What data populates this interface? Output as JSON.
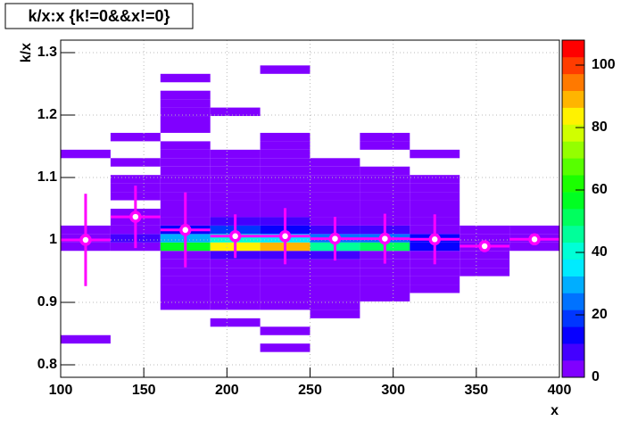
{
  "chart_data": {
    "type": "heatmap",
    "title": "k/x:x {k!=0&&x!=0}",
    "x_label": "x",
    "y_label": "k/x",
    "xlim": [
      100,
      400
    ],
    "ylim": [
      0.78,
      1.32
    ],
    "xticks": [
      100,
      150,
      200,
      250,
      300,
      350,
      400
    ],
    "yticks": [
      0.8,
      0.9,
      1,
      1.1,
      1.2,
      1.3
    ],
    "zlim": [
      0,
      108
    ],
    "zticks": [
      0,
      20,
      40,
      60,
      80,
      100
    ],
    "grid": true,
    "xbins": [
      100,
      130,
      160,
      190,
      220,
      250,
      280,
      310,
      340,
      370,
      400
    ],
    "ybins": [
      0.78,
      0.7935,
      0.807,
      0.8205,
      0.834,
      0.8475,
      0.861,
      0.8745,
      0.888,
      0.9015,
      0.915,
      0.9285,
      0.942,
      0.9555,
      0.969,
      0.9825,
      0.996,
      1.0095,
      1.023,
      1.0365,
      1.05,
      1.0635,
      1.077,
      1.0905,
      1.104,
      1.1175,
      1.131,
      1.1445,
      1.158,
      1.1715,
      1.185,
      1.1985,
      1.212,
      1.2255,
      1.239,
      1.2525,
      1.266,
      1.2795,
      1.293,
      1.3065,
      1.32
    ],
    "z": [
      [
        0,
        0,
        0,
        0,
        1,
        0,
        0,
        0,
        0,
        0,
        0,
        0,
        0,
        0,
        0,
        3,
        4,
        2,
        0,
        0,
        0,
        0,
        0,
        0,
        0,
        0,
        1,
        0,
        0,
        0,
        0,
        0,
        0,
        0,
        0,
        0,
        0,
        0,
        0,
        0
      ],
      [
        0,
        0,
        0,
        0,
        0,
        0,
        0,
        0,
        0,
        0,
        0,
        0,
        0,
        0,
        0,
        5,
        8,
        4,
        2,
        1,
        0,
        1,
        1,
        2,
        0,
        1,
        0,
        0,
        1,
        0,
        0,
        0,
        0,
        0,
        0,
        0,
        0,
        0,
        0,
        0
      ],
      [
        0,
        0,
        0,
        0,
        0,
        0,
        0,
        0,
        1,
        1,
        1,
        2,
        2,
        3,
        4,
        58,
        32,
        12,
        5,
        3,
        2,
        2,
        1,
        1,
        1,
        1,
        1,
        1,
        0,
        1,
        1,
        1,
        1,
        1,
        0,
        1,
        0,
        0,
        0,
        0
      ],
      [
        0,
        0,
        0,
        0,
        0,
        0,
        1,
        0,
        1,
        1,
        2,
        2,
        3,
        4,
        6,
        82,
        42,
        20,
        9,
        4,
        3,
        2,
        1,
        1,
        1,
        1,
        1,
        0,
        0,
        0,
        0,
        1,
        0,
        0,
        0,
        0,
        0,
        0,
        0,
        0
      ],
      [
        0,
        0,
        0,
        1,
        0,
        1,
        0,
        0,
        1,
        1,
        2,
        2,
        3,
        5,
        8,
        90,
        35,
        15,
        6,
        3,
        2,
        1,
        1,
        1,
        1,
        1,
        1,
        1,
        1,
        0,
        0,
        0,
        0,
        0,
        0,
        0,
        1,
        0,
        0,
        0
      ],
      [
        0,
        0,
        0,
        0,
        0,
        0,
        0,
        1,
        1,
        1,
        1,
        2,
        3,
        4,
        6,
        45,
        25,
        10,
        4,
        2,
        1,
        1,
        1,
        1,
        1,
        1,
        0,
        0,
        0,
        0,
        0,
        0,
        0,
        0,
        0,
        0,
        0,
        0,
        0,
        0
      ],
      [
        0,
        0,
        0,
        0,
        0,
        0,
        0,
        0,
        0,
        1,
        1,
        1,
        2,
        3,
        5,
        52,
        22,
        8,
        3,
        2,
        1,
        1,
        1,
        1,
        1,
        0,
        0,
        1,
        1,
        0,
        0,
        0,
        0,
        0,
        0,
        0,
        0,
        0,
        0,
        0
      ],
      [
        0,
        0,
        0,
        0,
        0,
        0,
        0,
        0,
        0,
        0,
        1,
        1,
        1,
        2,
        3,
        14,
        16,
        5,
        2,
        1,
        1,
        1,
        1,
        1,
        0,
        0,
        1,
        0,
        0,
        0,
        0,
        0,
        0,
        0,
        0,
        0,
        0,
        0,
        0,
        0
      ],
      [
        0,
        0,
        0,
        0,
        0,
        0,
        0,
        0,
        0,
        0,
        0,
        0,
        1,
        1,
        2,
        4,
        3,
        1,
        0,
        0,
        0,
        0,
        0,
        0,
        0,
        0,
        0,
        0,
        0,
        0,
        0,
        0,
        0,
        0,
        0,
        0,
        0,
        0,
        0,
        0
      ],
      [
        0,
        0,
        0,
        0,
        0,
        0,
        0,
        0,
        0,
        0,
        0,
        0,
        0,
        0,
        0,
        3,
        4,
        2,
        0,
        0,
        0,
        0,
        0,
        0,
        0,
        0,
        0,
        0,
        0,
        0,
        0,
        0,
        0,
        0,
        0,
        0,
        0,
        0,
        0,
        0
      ]
    ],
    "profile": {
      "color": "#ff00ff",
      "x": [
        115,
        145,
        175,
        205,
        235,
        265,
        295,
        325,
        355,
        385
      ],
      "values": [
        1.0,
        1.037,
        1.016,
        1.006,
        1.006,
        1.002,
        1.002,
        1.001,
        0.99,
        1.001
      ],
      "errors": [
        0.074,
        0.05,
        0.06,
        0.035,
        0.045,
        0.035,
        0.04,
        0.04,
        0.003,
        0.002
      ]
    }
  }
}
